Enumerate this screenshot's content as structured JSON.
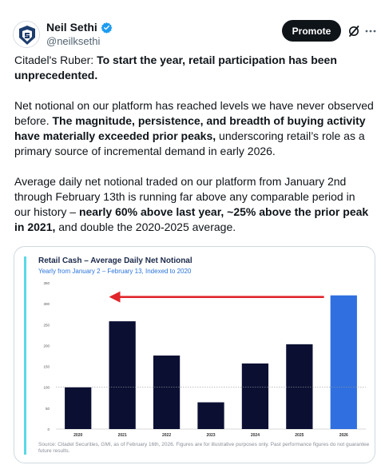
{
  "author": {
    "display_name": "Neil Sethi",
    "handle": "@neilksethi",
    "verified": true,
    "avatar_icon": "avatar-logo-icon"
  },
  "actions": {
    "promote_label": "Promote",
    "grok_icon": "grok-slash-icon",
    "more_icon": "more-dots-icon"
  },
  "tweet": {
    "p1_pre": "Citadel's Ruber: ",
    "p1_bold": "To start the year, retail participation has been unprecedented.",
    "p2_pre": "Net notional on our platform has reached levels we have never observed before. ",
    "p2_bold": "The magnitude, persistence, and breadth of buying activity have materially exceeded prior peaks,",
    "p2_post": " underscoring retail’s role as a primary source of incremental demand in early 2026.",
    "p3_pre": "Average daily net notional traded on our platform from January 2nd through February 13th is running far above any comparable period in our history – ",
    "p3_bold": "nearly 60% above last year, ~25% above the prior peak in 2021,",
    "p3_post": " and double the 2020-2025 average."
  },
  "chart_data": {
    "type": "bar",
    "title": "Retail Cash – Average Daily Net Notional",
    "subtitle": "Yearly from January 2 – February 13, Indexed to 2020",
    "categories": [
      "2020",
      "2021",
      "2022",
      "2023",
      "2024",
      "2025",
      "2026"
    ],
    "values": [
      100,
      258,
      176,
      64,
      157,
      203,
      320
    ],
    "highlight_category": "2026",
    "ylim": [
      0,
      350
    ],
    "yticks": [
      0,
      50,
      100,
      150,
      200,
      250,
      300,
      350
    ],
    "reference_line": 100,
    "annotation": "arrow from 2026 bar pointing left",
    "colors": {
      "bar": "#0b1033",
      "highlight": "#2f6fe0",
      "arrow": "#e0262b",
      "accent": "#5ad8e6"
    },
    "source": "Source: Citadel Securities, GMI, as of February 16th, 2026. Figures are for illustrative purposes only. Past performance figures do not guarantee future results."
  }
}
